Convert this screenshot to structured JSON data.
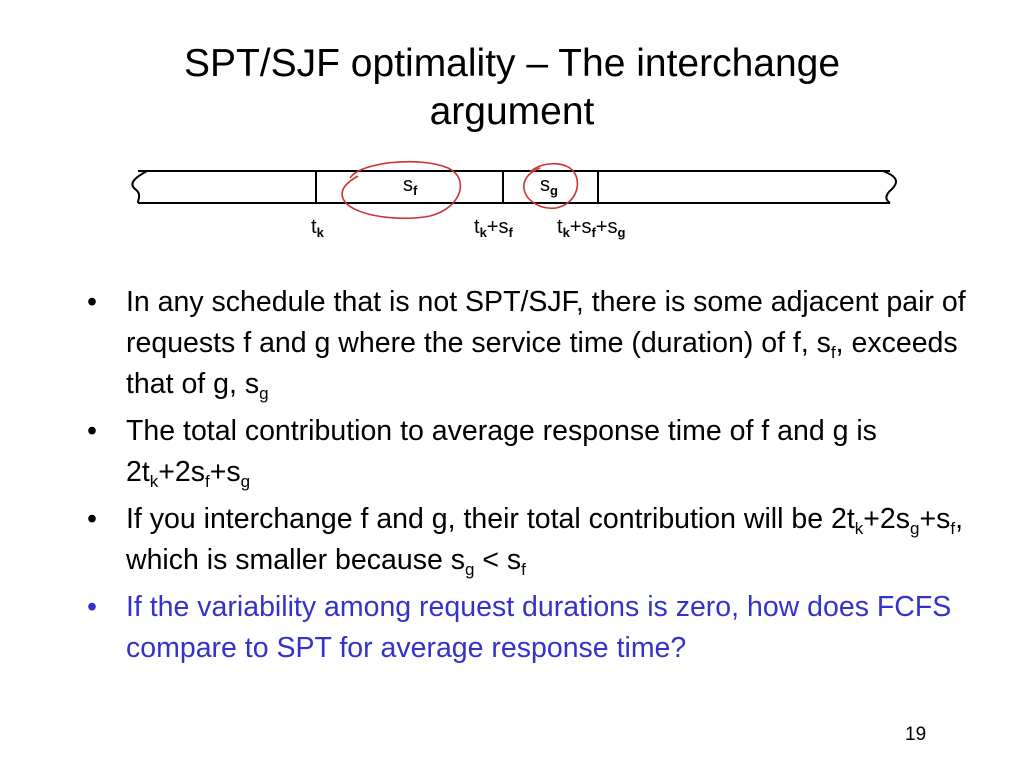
{
  "slide": {
    "title_line1": "SPT/SJF optimality – The interchange",
    "title_line2": "argument",
    "page_number": "19"
  },
  "diagram": {
    "block_f": {
      "base": "s",
      "sub": "f"
    },
    "block_g": {
      "base": "s",
      "sub": "g"
    },
    "tick_tk": {
      "t": "t",
      "k": "k"
    },
    "tick_tk_sf": {
      "t": "t",
      "k": "k",
      "plus1": "+s",
      "f": "f"
    },
    "tick_tk_sf_sg": {
      "t": "t",
      "k": "k",
      "plus1": "+s",
      "f": "f",
      "plus2": "+s",
      "g": "g"
    },
    "circle_color": "#cc3333"
  },
  "bullets": {
    "marker": "•",
    "b1": {
      "text": "In any schedule that is not SPT/SJF, there is some adjacent pair of requests f and g where the service time (duration) of f, s",
      "sub1": "f",
      "mid": ", exceeds that of g, s",
      "sub2": "g"
    },
    "b2": {
      "text": "The total contribution to average response time of f and g is 2t",
      "sub1": "k",
      "mid1": "+2s",
      "sub2": "f",
      "mid2": "+s",
      "sub3": "g"
    },
    "b3": {
      "text": "If you interchange f and g, their total contribution will be 2t",
      "sub1": "k",
      "mid1": "+2s",
      "sub2": "g",
      "mid2": "+s",
      "sub3": "f",
      "mid3": ", which is smaller because s",
      "sub4": "g",
      "mid4": " < s",
      "sub5": "f"
    },
    "b4": {
      "text": "If the variability among request durations is zero, how does FCFS compare to SPT for average response time?",
      "color": "#3333cc"
    }
  }
}
